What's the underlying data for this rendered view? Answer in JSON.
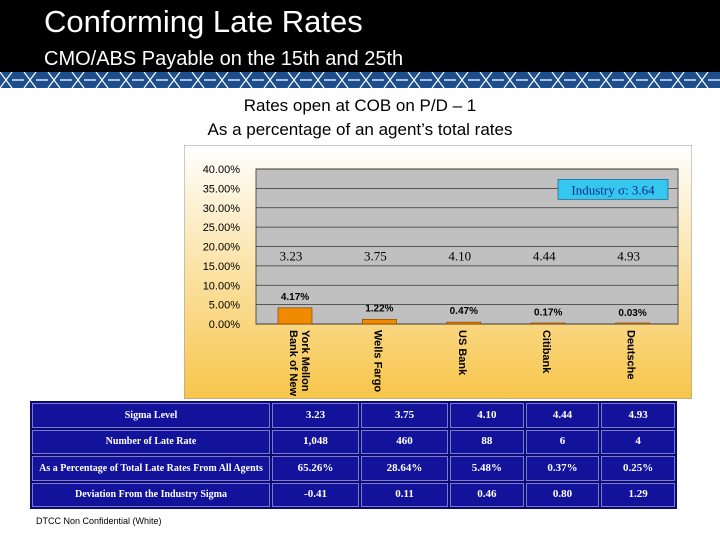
{
  "slide": {
    "title": "Conforming Late Rates",
    "subtitle": "CMO/ABS Payable on the 15th and 25th",
    "caption_line1": "Rates open at COB on P/D – 1",
    "caption_line2": "As a percentage of an agent’s total rates",
    "footer": "DTCC Non Confidential (White)"
  },
  "colors": {
    "header_bg": "#000000",
    "band": "#1f4e8c",
    "plot_bg": "#c0c0c0",
    "bar": "#f08a00",
    "chart_bg_top": "#ffffff",
    "chart_bg_bottom": "#f7c54a",
    "annotation_bg": "#35c7ee",
    "table_bg": "#12129a"
  },
  "chart_data": {
    "type": "bar",
    "title": "",
    "categories": [
      "Bank of New York Mellon",
      "Wells Fargo",
      "US Bank",
      "Citibank",
      "Deutsche"
    ],
    "category_labels": [
      [
        "Bank of New",
        "York Mellon"
      ],
      [
        "Wells Fargo"
      ],
      [
        "US Bank"
      ],
      [
        "Citibank"
      ],
      [
        "Deutsche"
      ]
    ],
    "values": [
      4.17,
      1.22,
      0.47,
      0.17,
      0.03
    ],
    "value_labels": [
      "4.17%",
      "1.22%",
      "0.47%",
      "0.17%",
      "0.03%"
    ],
    "sigma_labels": [
      "3.23",
      "3.75",
      "4.10",
      "4.44",
      "4.93"
    ],
    "ylim": [
      0,
      40
    ],
    "yticks": [
      "0.00%",
      "5.00%",
      "10.00%",
      "15.00%",
      "20.00%",
      "25.00%",
      "30.00%",
      "35.00%",
      "40.00%"
    ],
    "ytick_values": [
      0,
      5,
      10,
      15,
      20,
      25,
      30,
      35,
      40
    ],
    "annotation": "Industry σ: 3.64",
    "xlabel": "",
    "ylabel": "",
    "grid": true
  },
  "table": {
    "rows": [
      {
        "label": "Sigma Level",
        "values": [
          "3.23",
          "3.75",
          "4.10",
          "4.44",
          "4.93"
        ]
      },
      {
        "label": "Number of Late Rate",
        "values": [
          "1,048",
          "460",
          "88",
          "6",
          "4"
        ]
      },
      {
        "label": "As a Percentage of Total Late Rates From All Agents",
        "values": [
          "65.26%",
          "28.64%",
          "5.48%",
          "0.37%",
          "0.25%"
        ]
      },
      {
        "label": "Deviation From the Industry Sigma",
        "values": [
          "-0.41",
          "0.11",
          "0.46",
          "0.80",
          "1.29"
        ]
      }
    ]
  }
}
